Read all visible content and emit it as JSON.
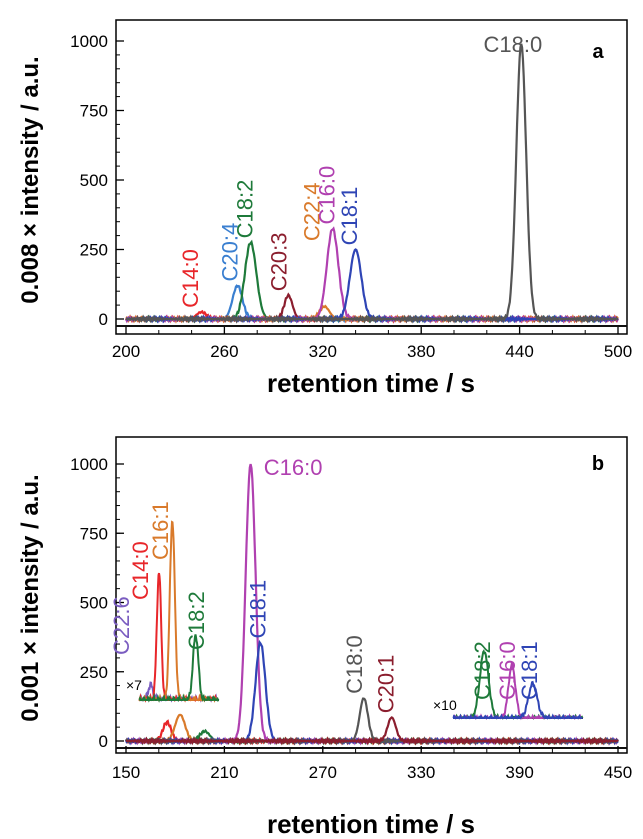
{
  "chart_data": [
    {
      "panel_label": "a",
      "type": "line",
      "xlabel": "retention time / s",
      "ylabel": "0.008 × intensity / a.u.",
      "xlim": [
        200,
        500
      ],
      "ylim": [
        0,
        1000
      ],
      "xticks": [
        200,
        260,
        320,
        380,
        440,
        500
      ],
      "yticks": [
        0,
        250,
        500,
        750,
        1000
      ],
      "series": [
        {
          "label": "C14:0",
          "color": "#e8262a",
          "peak_x": 246,
          "peak_y": 25,
          "width": 3
        },
        {
          "label": "C20:4",
          "color": "#3a7fd0",
          "peak_x": 268,
          "peak_y": 120,
          "width": 3
        },
        {
          "label": "C18:2",
          "color": "#1e7a3a",
          "peak_x": 276,
          "peak_y": 275,
          "width": 3.5
        },
        {
          "label": "C20:3",
          "color": "#8b1e2e",
          "peak_x": 299,
          "peak_y": 85,
          "width": 2.5
        },
        {
          "label": "C22:4",
          "color": "#d97a2b",
          "peak_x": 321,
          "peak_y": 45,
          "width": 3
        },
        {
          "label": "C16:0",
          "color": "#b040b0",
          "peak_x": 326,
          "peak_y": 325,
          "width": 3.5
        },
        {
          "label": "C18:1",
          "color": "#2f45b5",
          "peak_x": 340,
          "peak_y": 250,
          "width": 3.5
        },
        {
          "label": "C18:0",
          "color": "#555555",
          "peak_x": 441,
          "peak_y": 990,
          "width": 3
        }
      ],
      "annotations": [
        {
          "text": "C18:0",
          "x": 418,
          "y": 960,
          "rotate": 0,
          "color": "#555555"
        },
        {
          "text": "C14:0",
          "x": 244,
          "y": 40,
          "rotate": -90,
          "color": "#e8262a"
        },
        {
          "text": "C20:4",
          "x": 268,
          "y": 135,
          "rotate": -90,
          "color": "#3a7fd0"
        },
        {
          "text": "C18:2",
          "x": 277,
          "y": 290,
          "rotate": -90,
          "color": "#1e7a3a"
        },
        {
          "text": "C20:3",
          "x": 298,
          "y": 100,
          "rotate": -90,
          "color": "#8b1e2e"
        },
        {
          "text": "C22:4",
          "x": 318,
          "y": 280,
          "rotate": -90,
          "color": "#d97a2b"
        },
        {
          "text": "C16:0",
          "x": 327,
          "y": 340,
          "rotate": -90,
          "color": "#b040b0"
        },
        {
          "text": "C18:1",
          "x": 341,
          "y": 265,
          "rotate": -90,
          "color": "#2f45b5"
        }
      ]
    },
    {
      "panel_label": "b",
      "type": "line",
      "xlabel": "retention time / s",
      "ylabel": "0.001 × intensity / a.u.",
      "xlim": [
        150,
        450
      ],
      "ylim": [
        0,
        1000
      ],
      "xticks": [
        150,
        210,
        270,
        330,
        390,
        450
      ],
      "yticks": [
        0,
        250,
        500,
        750,
        1000
      ],
      "series": [
        {
          "label": "C14:0",
          "color": "#e8262a",
          "peak_x": 175,
          "peak_y": 68,
          "width": 2.5
        },
        {
          "label": "C16:1",
          "color": "#d97a2b",
          "peak_x": 183,
          "peak_y": 95,
          "width": 3
        },
        {
          "label": "C18:2",
          "color": "#1e7a3a",
          "peak_x": 198,
          "peak_y": 35,
          "width": 3
        },
        {
          "label": "C16:0",
          "color": "#b040b0",
          "peak_x": 226,
          "peak_y": 1000,
          "width": 3
        },
        {
          "label": "C18:1",
          "color": "#2f45b5",
          "peak_x": 232,
          "peak_y": 355,
          "width": 3
        },
        {
          "label": "C18:0",
          "color": "#555555",
          "peak_x": 295,
          "peak_y": 155,
          "width": 2.5
        },
        {
          "label": "C20:1",
          "color": "#8b1e2e",
          "peak_x": 312,
          "peak_y": 85,
          "width": 2.5
        }
      ],
      "annotations": [
        {
          "text": "C16:0",
          "x": 234,
          "y": 960,
          "rotate": 0,
          "color": "#b040b0"
        },
        {
          "text": "C18:1",
          "x": 235,
          "y": 370,
          "rotate": -90,
          "color": "#2f45b5"
        },
        {
          "text": "C18:0",
          "x": 294,
          "y": 170,
          "rotate": -90,
          "color": "#555555"
        },
        {
          "text": "C20:1",
          "x": 313,
          "y": 100,
          "rotate": -90,
          "color": "#8b1e2e"
        }
      ],
      "insets": [
        {
          "factor": "×7",
          "range": [
            164,
            212
          ],
          "series": [
            {
              "label": "C22:6",
              "color": "#7a5cc0",
              "peak_x": 171,
              "peak_y": 55,
              "width": 1.5
            },
            {
              "label": "C14:0",
              "color": "#e8262a",
              "peak_x": 176,
              "peak_y": 470,
              "width": 1.3
            },
            {
              "label": "C16:1",
              "color": "#d97a2b",
              "peak_x": 184,
              "peak_y": 660,
              "width": 1.5
            },
            {
              "label": "C18:2",
              "color": "#1e7a3a",
              "peak_x": 198,
              "peak_y": 240,
              "width": 1.6
            }
          ],
          "labels": [
            "C22:6",
            "C14:0",
            "C16:1",
            "C18:2"
          ]
        },
        {
          "factor": "×10",
          "range": [
            355,
            430
          ],
          "series": [
            {
              "label": "C18:2",
              "color": "#1e7a3a",
              "peak_x": 373,
              "peak_y": 380,
              "width": 2.5
            },
            {
              "label": "C16:0",
              "color": "#b040b0",
              "peak_x": 389,
              "peak_y": 300,
              "width": 2
            },
            {
              "label": "C18:1",
              "color": "#2f45b5",
              "peak_x": 401,
              "peak_y": 195,
              "width": 2.5
            }
          ],
          "labels": [
            "C18:2",
            "C16:0",
            "C18:1"
          ]
        }
      ]
    }
  ]
}
